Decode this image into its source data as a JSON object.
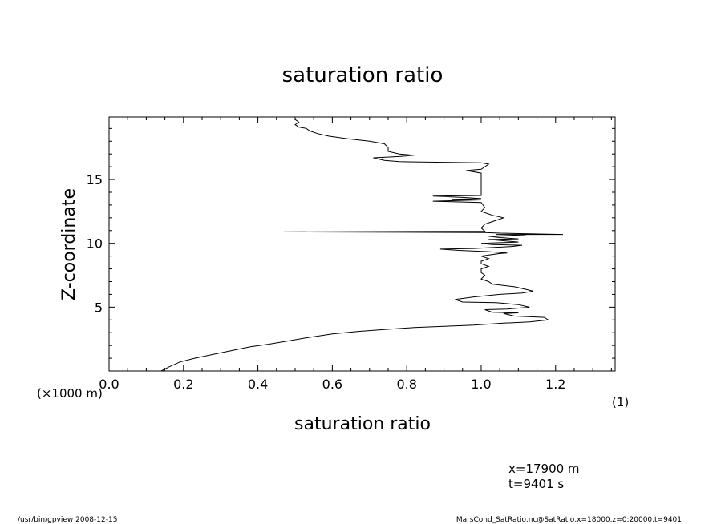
{
  "chart_data": {
    "type": "line",
    "title": "saturation ratio",
    "xlabel": "saturation ratio",
    "ylabel": "Z-coordinate",
    "x_unit_label": "(1)",
    "y_unit_label": "(×1000 m)",
    "xlim": [
      0.0,
      1.36
    ],
    "ylim": [
      0.0,
      19.9
    ],
    "x_ticks": [
      0.0,
      0.2,
      0.4,
      0.6,
      0.8,
      1.0,
      1.2
    ],
    "x_tick_labels": [
      "0.0",
      "0.2",
      "0.4",
      "0.6",
      "0.8",
      "1.0",
      "1.2"
    ],
    "y_ticks": [
      5,
      10,
      15
    ],
    "y_tick_labels": [
      "5",
      "10",
      "15"
    ],
    "grid": false,
    "series": [
      {
        "points": [
          [
            0.14,
            0.0
          ],
          [
            0.16,
            0.3
          ],
          [
            0.19,
            0.7
          ],
          [
            0.23,
            1.0
          ],
          [
            0.28,
            1.3
          ],
          [
            0.33,
            1.6
          ],
          [
            0.38,
            1.9
          ],
          [
            0.43,
            2.1
          ],
          [
            0.48,
            2.35
          ],
          [
            0.53,
            2.6
          ],
          [
            0.6,
            2.9
          ],
          [
            0.67,
            3.1
          ],
          [
            0.74,
            3.25
          ],
          [
            0.82,
            3.4
          ],
          [
            0.9,
            3.5
          ],
          [
            0.98,
            3.6
          ],
          [
            1.06,
            3.75
          ],
          [
            1.13,
            3.85
          ],
          [
            1.18,
            4.0
          ],
          [
            1.17,
            4.2
          ],
          [
            1.09,
            4.3
          ],
          [
            1.06,
            4.5
          ],
          [
            1.1,
            4.55
          ],
          [
            1.03,
            4.6
          ],
          [
            1.01,
            4.8
          ],
          [
            1.07,
            4.85
          ],
          [
            1.13,
            5.0
          ],
          [
            1.1,
            5.2
          ],
          [
            1.04,
            5.35
          ],
          [
            0.95,
            5.4
          ],
          [
            0.93,
            5.6
          ],
          [
            0.98,
            5.8
          ],
          [
            1.05,
            6.0
          ],
          [
            1.11,
            6.1
          ],
          [
            1.14,
            6.25
          ],
          [
            1.12,
            6.4
          ],
          [
            1.09,
            6.6
          ],
          [
            1.06,
            6.7
          ],
          [
            1.03,
            6.8
          ],
          [
            1.02,
            7.0
          ],
          [
            1.0,
            7.2
          ],
          [
            1.01,
            7.5
          ],
          [
            1.0,
            7.7
          ],
          [
            1.0,
            8.0
          ],
          [
            1.02,
            8.2
          ],
          [
            1.0,
            8.4
          ],
          [
            1.0,
            8.6
          ],
          [
            1.02,
            8.8
          ],
          [
            1.0,
            9.0
          ],
          [
            1.05,
            9.2
          ],
          [
            1.07,
            9.25
          ],
          [
            1.02,
            9.35
          ],
          [
            0.94,
            9.45
          ],
          [
            0.89,
            9.55
          ],
          [
            0.98,
            9.6
          ],
          [
            1.08,
            9.75
          ],
          [
            1.11,
            9.85
          ],
          [
            1.03,
            9.9
          ],
          [
            1.0,
            10.0
          ],
          [
            1.05,
            10.05
          ],
          [
            1.1,
            10.1
          ],
          [
            1.06,
            10.2
          ],
          [
            1.02,
            10.3
          ],
          [
            1.1,
            10.35
          ],
          [
            1.05,
            10.45
          ],
          [
            1.02,
            10.55
          ],
          [
            1.12,
            10.6
          ],
          [
            1.04,
            10.7
          ],
          [
            1.22,
            10.7
          ],
          [
            1.05,
            10.8
          ],
          [
            1.01,
            10.85
          ],
          [
            0.47,
            10.9
          ],
          [
            1.01,
            10.95
          ],
          [
            1.0,
            11.2
          ],
          [
            1.01,
            11.5
          ],
          [
            1.03,
            11.7
          ],
          [
            1.06,
            12.0
          ],
          [
            1.03,
            12.2
          ],
          [
            1.0,
            12.5
          ],
          [
            1.01,
            12.8
          ],
          [
            1.0,
            13.2
          ],
          [
            0.87,
            13.3
          ],
          [
            1.0,
            13.4
          ],
          [
            0.92,
            13.45
          ],
          [
            1.0,
            13.5
          ],
          [
            0.95,
            13.6
          ],
          [
            0.87,
            13.7
          ],
          [
            1.0,
            13.75
          ],
          [
            1.0,
            14.0
          ],
          [
            1.0,
            14.5
          ],
          [
            1.0,
            15.0
          ],
          [
            1.0,
            15.5
          ],
          [
            0.96,
            15.7
          ],
          [
            1.0,
            15.8
          ],
          [
            1.01,
            16.0
          ],
          [
            1.02,
            16.2
          ],
          [
            1.0,
            16.3
          ],
          [
            0.9,
            16.35
          ],
          [
            0.78,
            16.4
          ],
          [
            0.74,
            16.5
          ],
          [
            0.71,
            16.7
          ],
          [
            0.78,
            16.8
          ],
          [
            0.82,
            16.9
          ],
          [
            0.78,
            17.0
          ],
          [
            0.75,
            17.2
          ],
          [
            0.75,
            17.5
          ],
          [
            0.74,
            17.8
          ],
          [
            0.7,
            18.0
          ],
          [
            0.64,
            18.2
          ],
          [
            0.59,
            18.4
          ],
          [
            0.56,
            18.6
          ],
          [
            0.54,
            18.8
          ],
          [
            0.53,
            19.0
          ],
          [
            0.51,
            19.1
          ],
          [
            0.5,
            19.3
          ],
          [
            0.51,
            19.5
          ],
          [
            0.5,
            19.7
          ]
        ]
      }
    ]
  },
  "annotations": {
    "position_x": "x=17900  m",
    "position_t": "t=9401  s"
  },
  "footer": {
    "left": "/usr/bin/gpview   2008-12-15",
    "right": "MarsCond_SatRatio.nc@SatRatio,x=18000,z=0:20000,t=9401"
  }
}
